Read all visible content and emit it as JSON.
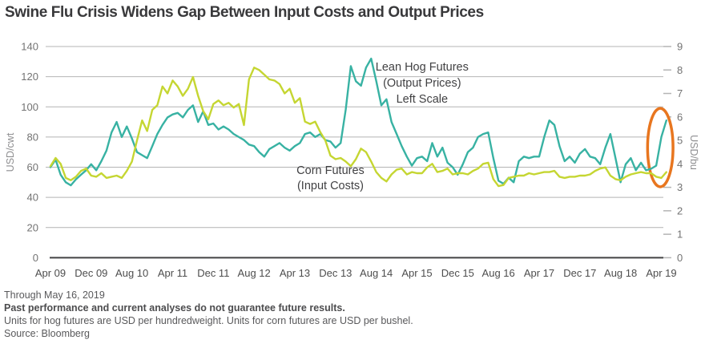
{
  "header": {
    "title": "Swine Flu Crisis Widens Gap Between Input Costs and Output Prices"
  },
  "chart_data": {
    "type": "line",
    "title": "Swine Flu Crisis Widens Gap Between Input Costs and Output Prices",
    "x_axis": {
      "start": "Apr 2009",
      "end": "May 2019",
      "frequency": "monthly",
      "tick_labels": [
        "Apr 09",
        "Dec 09",
        "Aug 10",
        "Apr 11",
        "Dec 11",
        "Aug 12",
        "Apr 13",
        "Dec 13",
        "Aug 14",
        "Apr 15",
        "Dec 15",
        "Aug 16",
        "Apr 17",
        "Dec 17",
        "Aug 18",
        "Apr 19"
      ],
      "tick_month_step": 8
    },
    "left_axis": {
      "label": "USD/cwt",
      "range": [
        0,
        140
      ],
      "ticks": [
        0,
        20,
        40,
        60,
        80,
        100,
        120,
        140
      ]
    },
    "right_axis": {
      "label": "USD/bu",
      "range": [
        0,
        9
      ],
      "ticks": [
        0,
        1,
        2,
        3,
        4,
        5,
        6,
        7,
        8,
        9
      ]
    },
    "grid": "horizontal",
    "series": [
      {
        "name": "Lean Hog Futures (Output Prices)",
        "axis": "left",
        "color": "#38b2a3",
        "values": [
          60,
          65,
          55,
          50,
          48,
          52,
          55,
          58,
          62,
          58,
          64,
          71,
          83,
          90,
          80,
          87,
          79,
          70,
          68,
          66,
          74,
          82,
          88,
          93,
          95,
          96,
          93,
          98,
          101,
          90,
          97,
          88,
          89,
          85,
          87,
          85,
          82,
          80,
          78,
          75,
          74,
          70,
          67,
          72,
          74,
          76,
          73,
          71,
          74,
          76,
          82,
          83,
          80,
          82,
          78,
          77,
          73,
          76,
          98,
          127,
          117,
          114,
          126,
          132,
          117,
          101,
          105,
          90,
          82,
          74,
          67,
          61,
          66,
          67,
          64,
          76,
          67,
          73,
          63,
          60,
          55,
          62,
          70,
          73,
          80,
          82,
          83,
          66,
          51,
          49,
          53,
          50,
          64,
          67,
          66,
          67,
          67,
          80,
          91,
          88,
          74,
          64,
          67,
          63,
          69,
          72,
          67,
          66,
          62,
          73,
          82,
          66,
          50,
          62,
          66,
          58,
          63,
          58,
          59,
          61,
          80,
          91
        ]
      },
      {
        "name": "Corn Futures (Input Costs)",
        "axis": "right",
        "color": "#c5d632",
        "values": [
          3.9,
          4.25,
          4.0,
          3.4,
          3.3,
          3.45,
          3.7,
          3.8,
          3.5,
          3.45,
          3.6,
          3.4,
          3.45,
          3.5,
          3.4,
          3.7,
          4.1,
          5.0,
          5.85,
          5.4,
          6.3,
          6.5,
          7.3,
          7.0,
          7.55,
          7.3,
          6.9,
          7.2,
          7.7,
          6.9,
          6.25,
          5.9,
          6.55,
          6.7,
          6.5,
          6.6,
          6.4,
          6.55,
          5.65,
          7.6,
          8.1,
          8.0,
          7.8,
          7.6,
          7.55,
          7.4,
          7.0,
          7.2,
          6.6,
          6.8,
          5.8,
          5.7,
          5.8,
          5.35,
          5.0,
          4.35,
          4.2,
          4.25,
          4.1,
          3.9,
          4.2,
          4.65,
          4.5,
          4.1,
          3.65,
          3.4,
          3.25,
          3.55,
          3.75,
          3.8,
          3.55,
          3.65,
          3.6,
          3.6,
          3.85,
          4.0,
          3.65,
          3.7,
          3.8,
          3.55,
          3.6,
          3.6,
          3.55,
          3.7,
          3.8,
          4.0,
          4.05,
          3.35,
          3.05,
          3.1,
          3.4,
          3.45,
          3.5,
          3.5,
          3.6,
          3.55,
          3.6,
          3.65,
          3.65,
          3.7,
          3.45,
          3.4,
          3.45,
          3.45,
          3.5,
          3.5,
          3.55,
          3.7,
          3.8,
          3.85,
          3.5,
          3.35,
          3.3,
          3.45,
          3.55,
          3.6,
          3.65,
          3.6,
          3.6,
          3.45,
          3.4,
          3.65
        ]
      }
    ],
    "annotations": {
      "hog_label": {
        "lines": [
          "Lean Hog Futures",
          "(Output Prices)",
          "Left Scale"
        ],
        "center_month": 73,
        "top_left_value": 133
      },
      "corn_label": {
        "lines": [
          "Corn Futures",
          "(Input Costs)"
        ],
        "center_month": 55,
        "top_left_value": 64
      },
      "highlight_ellipse": {
        "stroke": "#e8761f",
        "fill": "#ffffff",
        "center_month": 119.8,
        "month_radius": 2.5,
        "center_left_value": 73,
        "left_value_radius": 26
      }
    },
    "colors": {
      "grid": "#b4b4b4",
      "baseline": "#434345",
      "tick_number": "#737373",
      "x_label": "#4d4d4d",
      "series_label_text": "#414143"
    }
  },
  "footer": {
    "through": "Through May 16, 2019",
    "disclaimer": "Past performance and current analyses do not guarantee future results.",
    "units": "Units for hog futures are USD per hundredweight. Units for corn futures are USD per bushel.",
    "source": "Source: Bloomberg"
  }
}
